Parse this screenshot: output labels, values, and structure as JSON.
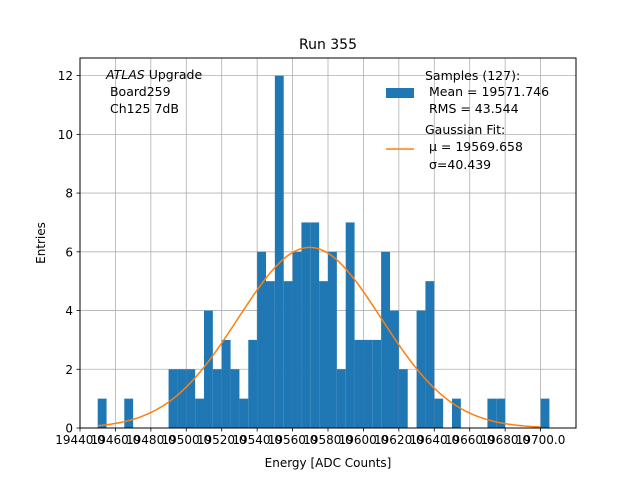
{
  "chart_data": {
    "type": "bar",
    "title": "Run 355",
    "xlabel": "Energy [ADC Counts]",
    "ylabel": "Entries",
    "xlim": [
      19440,
      19720
    ],
    "ylim": [
      0,
      12.6
    ],
    "grid": true,
    "bin_width": 5,
    "xtick_values": [
      19440,
      19460,
      19480,
      19500,
      19520,
      19540,
      19560,
      19580,
      19600,
      19620,
      19640,
      19660,
      19680,
      19700
    ],
    "xtick_labels": [
      "19440.0",
      "19460.0",
      "19480.0",
      "19500.0",
      "19520.0",
      "19540.0",
      "19560.0",
      "19580.0",
      "19600.0",
      "19620.0",
      "19640.0",
      "19660.0",
      "19680.0",
      "19700.0"
    ],
    "ytick_values": [
      0,
      2,
      4,
      6,
      8,
      10,
      12
    ],
    "ytick_labels": [
      "0",
      "2",
      "4",
      "6",
      "8",
      "10",
      "12"
    ],
    "bins": [
      {
        "x": 19450,
        "count": 1
      },
      {
        "x": 19465,
        "count": 1
      },
      {
        "x": 19490,
        "count": 2
      },
      {
        "x": 19495,
        "count": 2
      },
      {
        "x": 19500,
        "count": 2
      },
      {
        "x": 19505,
        "count": 1
      },
      {
        "x": 19510,
        "count": 4
      },
      {
        "x": 19515,
        "count": 2
      },
      {
        "x": 19520,
        "count": 3
      },
      {
        "x": 19525,
        "count": 2
      },
      {
        "x": 19530,
        "count": 1
      },
      {
        "x": 19535,
        "count": 3
      },
      {
        "x": 19540,
        "count": 6
      },
      {
        "x": 19545,
        "count": 5
      },
      {
        "x": 19550,
        "count": 12
      },
      {
        "x": 19555,
        "count": 5
      },
      {
        "x": 19560,
        "count": 6
      },
      {
        "x": 19565,
        "count": 7
      },
      {
        "x": 19570,
        "count": 7
      },
      {
        "x": 19575,
        "count": 5
      },
      {
        "x": 19580,
        "count": 6
      },
      {
        "x": 19585,
        "count": 2
      },
      {
        "x": 19590,
        "count": 7
      },
      {
        "x": 19595,
        "count": 3
      },
      {
        "x": 19600,
        "count": 3
      },
      {
        "x": 19605,
        "count": 3
      },
      {
        "x": 19610,
        "count": 6
      },
      {
        "x": 19615,
        "count": 4
      },
      {
        "x": 19620,
        "count": 2
      },
      {
        "x": 19630,
        "count": 4
      },
      {
        "x": 19635,
        "count": 5
      },
      {
        "x": 19640,
        "count": 1
      },
      {
        "x": 19650,
        "count": 1
      },
      {
        "x": 19670,
        "count": 1
      },
      {
        "x": 19675,
        "count": 1
      },
      {
        "x": 19700,
        "count": 1
      }
    ],
    "fit": {
      "mu": 19569.658,
      "sigma": 40.439,
      "amplitude": 6.15,
      "x_range": [
        19450,
        19700
      ]
    },
    "series_colors": {
      "histogram": "#1f77b4",
      "fit": "#ff7f0e"
    },
    "annotation_lines": [
      "ATLAS Upgrade",
      " Board259",
      " Ch125 7dB"
    ],
    "annotation_italic": "ATLAS",
    "annotation_rest": " Upgrade",
    "legend": {
      "position": "top-right",
      "histogram_lines": [
        "Samples (127):",
        " Mean = 19571.746",
        " RMS = 43.544"
      ],
      "fit_lines": [
        "Gaussian Fit:",
        " μ = 19569.658",
        " σ=40.439"
      ]
    }
  }
}
